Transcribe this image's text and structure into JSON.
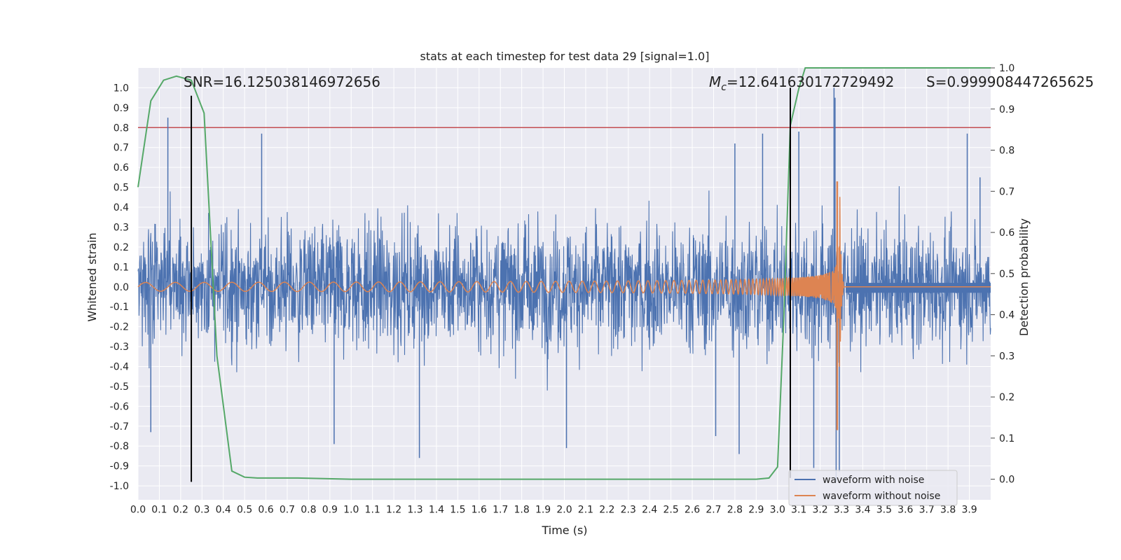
{
  "chart_data": {
    "type": "line",
    "title": "stats at each timestep for test data 29 [signal=1.0]",
    "xlabel": "Time (s)",
    "ylabel": "Whitened strain",
    "y2label": "Detection probability",
    "xlim": [
      0.0,
      4.0
    ],
    "ylim": [
      -1.07,
      1.1
    ],
    "y2lim": [
      -0.05,
      1.0
    ],
    "grid": true,
    "xticks": [
      "0.0",
      "0.1",
      "0.2",
      "0.3",
      "0.4",
      "0.5",
      "0.6",
      "0.7",
      "0.8",
      "0.9",
      "1.0",
      "1.1",
      "1.2",
      "1.3",
      "1.4",
      "1.5",
      "1.6",
      "1.7",
      "1.8",
      "1.9",
      "2.0",
      "2.1",
      "2.2",
      "2.3",
      "2.4",
      "2.5",
      "2.6",
      "2.7",
      "2.8",
      "2.9",
      "3.0",
      "3.1",
      "3.2",
      "3.3",
      "3.4",
      "3.5",
      "3.6",
      "3.7",
      "3.8",
      "3.9"
    ],
    "yticks": [
      "-1.0",
      "-0.9",
      "-0.8",
      "-0.7",
      "-0.6",
      "-0.5",
      "-0.4",
      "-0.3",
      "-0.2",
      "-0.1",
      "0.0",
      "0.1",
      "0.2",
      "0.3",
      "0.4",
      "0.5",
      "0.6",
      "0.7",
      "0.8",
      "0.9",
      "1.0"
    ],
    "y2ticks": [
      "0.0",
      "0.1",
      "0.2",
      "0.3",
      "0.4",
      "0.5",
      "0.6",
      "0.7",
      "0.8",
      "0.9",
      "1.0"
    ],
    "threshold": {
      "y": 0.8,
      "color": "#c44e52"
    },
    "markers": [
      {
        "name": "signal-start",
        "x": 0.25,
        "y0": -0.98,
        "y1": 0.96
      },
      {
        "name": "signal-end",
        "x": 3.06,
        "y0": -0.96,
        "y1": 1.0
      }
    ],
    "annotations": {
      "snr": "SNR=16.125038146972656",
      "mc_symbol": "M",
      "mc_sub": "c",
      "mc_value": "=12.641630172729492",
      "s": "S=0.999908447265625"
    },
    "noisy_waveform": {
      "name": "waveform with noise",
      "color": "#4c72b0",
      "amplitude_env": [
        0.55,
        0.8
      ],
      "extremes": [
        [
          0.14,
          0.85
        ],
        [
          0.06,
          -0.73
        ],
        [
          0.58,
          0.77
        ],
        [
          0.92,
          -0.79
        ],
        [
          1.32,
          -0.86
        ],
        [
          2.01,
          -0.81
        ],
        [
          2.71,
          -0.75
        ],
        [
          2.8,
          0.72
        ],
        [
          2.82,
          -0.84
        ],
        [
          2.93,
          0.77
        ],
        [
          3.1,
          0.78
        ],
        [
          3.17,
          -0.91
        ],
        [
          3.265,
          1.0
        ],
        [
          3.27,
          0.95
        ],
        [
          3.275,
          -0.98
        ],
        [
          3.29,
          -0.93
        ],
        [
          3.89,
          0.77
        ],
        [
          3.95,
          0.55
        ]
      ]
    },
    "clean_waveform": {
      "name": "waveform without noise",
      "color": "#dd8452",
      "t_merger": 3.29,
      "amp_start": 0.022,
      "f_start": 7.0,
      "peak": [
        0.53,
        -0.72
      ]
    },
    "probability": {
      "name": "detection probability",
      "color": "#55a868",
      "x": [
        0.0,
        0.06,
        0.12,
        0.18,
        0.25,
        0.31,
        0.37,
        0.44,
        0.5,
        0.56,
        0.75,
        1.0,
        1.5,
        2.0,
        2.5,
        2.9,
        2.96,
        3.0,
        3.03,
        3.06,
        3.1,
        3.13,
        4.0
      ],
      "y": [
        0.71,
        0.92,
        0.97,
        0.98,
        0.97,
        0.89,
        0.3,
        0.02,
        0.005,
        0.003,
        0.003,
        0.0,
        0.0,
        0.0,
        0.0,
        0.0,
        0.003,
        0.03,
        0.4,
        0.86,
        0.95,
        1.0,
        1.0
      ]
    },
    "legend": {
      "position": "lower-right",
      "entries": [
        {
          "label": "waveform with noise",
          "color": "#4c72b0"
        },
        {
          "label": "waveform without noise",
          "color": "#dd8452"
        }
      ]
    }
  }
}
